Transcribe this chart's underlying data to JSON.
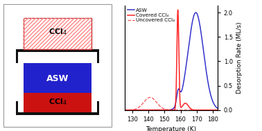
{
  "xlabel": "Temperature (K)",
  "ylabel_right": "Desorption Rate (ML/s)",
  "xlim": [
    125,
    183
  ],
  "ylim": [
    0,
    2.15
  ],
  "xticks": [
    130,
    140,
    150,
    160,
    170,
    180
  ],
  "yticks": [
    0.0,
    0.5,
    1.0,
    1.5,
    2.0
  ],
  "legend_labels": [
    "ASW",
    "Covered CCl₄",
    "Uncovered CCl₄"
  ],
  "line_colors_asw": "#3333cc",
  "line_colors_covered": "#ff2222",
  "line_colors_uncovered": "#ff5555",
  "asw_peak_mu": 169.5,
  "asw_peak_sigma": 4.8,
  "asw_peak_amp": 2.0,
  "asw_shoulder_mu": 158.5,
  "asw_shoulder_sigma": 1.0,
  "asw_shoulder_amp": 0.28,
  "asw_onset": 153.5,
  "covered_peak_mu": 158.3,
  "covered_peak_sigma": 0.6,
  "covered_peak_amp": 2.05,
  "covered_shoulder_mu": 163.0,
  "covered_shoulder_sigma": 1.8,
  "covered_shoulder_amp": 0.14,
  "uncovered_peak_mu": 141.0,
  "uncovered_peak_sigma": 4.0,
  "uncovered_peak_amp": 0.26,
  "scheme_top_ccl4_color": "#ffffff",
  "scheme_top_hatch_color": "#ff8888",
  "scheme_top_edge_color": "#cc3333",
  "scheme_asw_color": "#2222cc",
  "scheme_ccl4_color": "#cc1111",
  "bracket_color": "#111111"
}
